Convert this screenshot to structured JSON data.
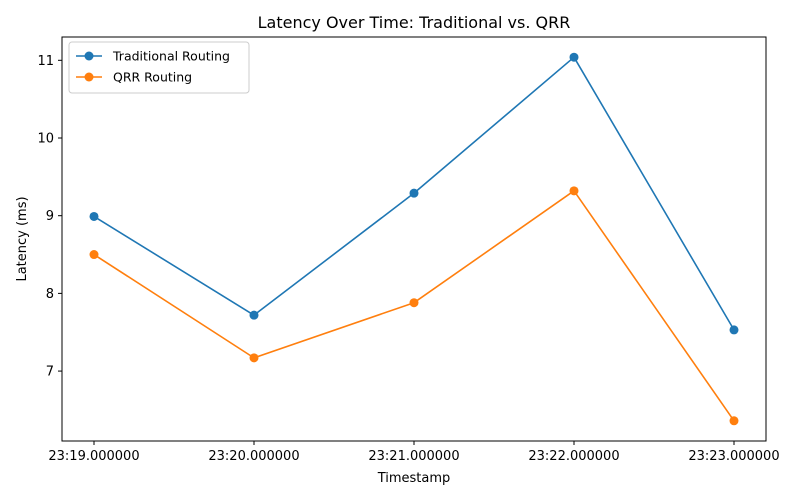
{
  "chart_data": {
    "type": "line",
    "title": "Latency Over Time: Traditional vs. QRR",
    "xlabel": "Timestamp",
    "ylabel": "Latency (ms)",
    "categories": [
      "23:19.000000",
      "23:20.000000",
      "23:21.000000",
      "23:22.000000",
      "23:23.000000"
    ],
    "series": [
      {
        "name": "Traditional Routing",
        "color": "#1f77b4",
        "values": [
          8.99,
          7.72,
          9.29,
          11.04,
          7.53
        ]
      },
      {
        "name": "QRR Routing",
        "color": "#ff7f0e",
        "values": [
          8.5,
          7.17,
          7.88,
          9.32,
          6.36
        ]
      }
    ],
    "ylim": [
      6.1,
      11.3
    ],
    "yticks": [
      7,
      8,
      9,
      10,
      11
    ],
    "grid": false,
    "legend": "top-left",
    "marker": "circle"
  }
}
